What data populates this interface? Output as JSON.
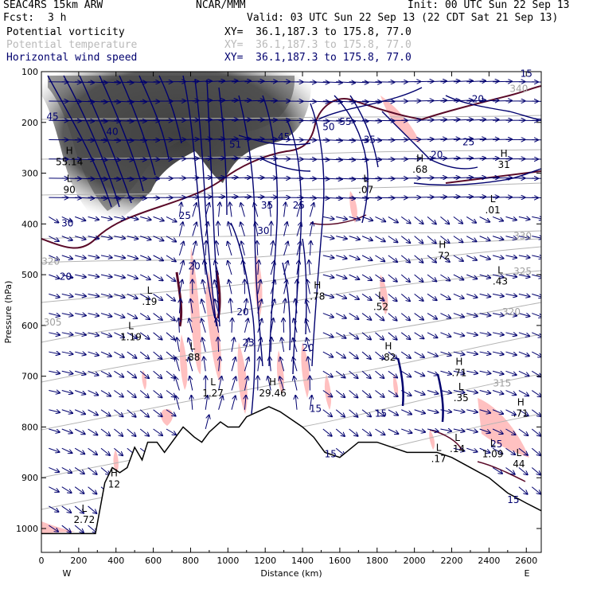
{
  "header": {
    "model": "SEAC4RS 15km ARW",
    "center": "NCAR/MMM",
    "init": "Init: 00 UTC Sun 22 Sep 13",
    "fcst_label": "Fcst:",
    "fcst_value": "3 h",
    "valid": "Valid: 03 UTC Sun 22 Sep 13 (22 CDT Sat 21 Sep 13)",
    "fields": [
      {
        "name": "Potential vorticity",
        "xy": "XY=  36.1,187.3 to 175.8, 77.0",
        "color": "#000000"
      },
      {
        "name": "Potential temperature",
        "xy": "XY=  36.1,187.3 to 175.8, 77.0",
        "color": "#b9b9b9"
      },
      {
        "name": "Horizontal wind speed",
        "xy": "XY=  36.1,187.3 to 175.8, 77.0",
        "color": "#00006e"
      }
    ]
  },
  "chart_data": {
    "type": "cross-section",
    "xlabel": "Distance (km)",
    "ylabel": "Pressure (hPa)",
    "xlim": [
      0,
      2680
    ],
    "ylim": [
      1050,
      100
    ],
    "x_ticks": [
      "0",
      "200",
      "400",
      "600",
      "800",
      "1000",
      "1200",
      "1400",
      "1600",
      "1800",
      "2000",
      "2200",
      "2400",
      "2600"
    ],
    "x_tick_values": [
      0,
      200,
      400,
      600,
      800,
      1000,
      1200,
      1400,
      1600,
      1800,
      2000,
      2200,
      2400,
      2600
    ],
    "y_ticks": [
      "100",
      "200",
      "300",
      "400",
      "500",
      "600",
      "700",
      "800",
      "900",
      "1000"
    ],
    "y_tick_values": [
      100,
      200,
      300,
      400,
      500,
      600,
      700,
      800,
      900,
      1000
    ],
    "left_end": "W",
    "right_end": "E",
    "colors": {
      "pv_shade": "#3a3a3a",
      "pv_contour": "#5a0a28",
      "theta": "#b4b4b4",
      "wind": "#00006e",
      "vert_motion": "#ffb6b6"
    },
    "terrain": [
      [
        0,
        1010
      ],
      [
        200,
        1010
      ],
      [
        290,
        1010
      ],
      [
        340,
        910
      ],
      [
        380,
        880
      ],
      [
        420,
        890
      ],
      [
        460,
        880
      ],
      [
        500,
        840
      ],
      [
        540,
        865
      ],
      [
        570,
        830
      ],
      [
        620,
        830
      ],
      [
        660,
        850
      ],
      [
        700,
        830
      ],
      [
        760,
        800
      ],
      [
        820,
        820
      ],
      [
        860,
        830
      ],
      [
        900,
        810
      ],
      [
        960,
        790
      ],
      [
        1000,
        800
      ],
      [
        1060,
        800
      ],
      [
        1100,
        780
      ],
      [
        1160,
        770
      ],
      [
        1220,
        760
      ],
      [
        1280,
        770
      ],
      [
        1340,
        785
      ],
      [
        1400,
        800
      ],
      [
        1460,
        820
      ],
      [
        1520,
        850
      ],
      [
        1600,
        860
      ],
      [
        1700,
        830
      ],
      [
        1800,
        830
      ],
      [
        1880,
        840
      ],
      [
        1960,
        850
      ],
      [
        2040,
        850
      ],
      [
        2120,
        850
      ],
      [
        2200,
        860
      ],
      [
        2300,
        880
      ],
      [
        2400,
        900
      ],
      [
        2500,
        930
      ],
      [
        2600,
        950
      ],
      [
        2680,
        965
      ]
    ],
    "wind_speed_labels": [
      {
        "text": "45",
        "x": 60,
        "p": 195
      },
      {
        "text": "40",
        "x": 380,
        "p": 225
      },
      {
        "text": "50",
        "x": 1540,
        "p": 215
      },
      {
        "text": "55",
        "x": 1630,
        "p": 205
      },
      {
        "text": "51",
        "x": 1040,
        "p": 250
      },
      {
        "text": "45",
        "x": 1300,
        "p": 235
      },
      {
        "text": "35",
        "x": 1210,
        "p": 370
      },
      {
        "text": "25",
        "x": 1380,
        "p": 370
      },
      {
        "text": "25",
        "x": 770,
        "p": 390
      },
      {
        "text": "30",
        "x": 1190,
        "p": 420
      },
      {
        "text": "20",
        "x": 820,
        "p": 490
      },
      {
        "text": "20",
        "x": 1080,
        "p": 580
      },
      {
        "text": "23",
        "x": 1110,
        "p": 640
      },
      {
        "text": "20",
        "x": 1430,
        "p": 650
      },
      {
        "text": "20",
        "x": 2340,
        "p": 160
      },
      {
        "text": "20",
        "x": 2120,
        "p": 270
      },
      {
        "text": "25",
        "x": 2290,
        "p": 245
      },
      {
        "text": "35",
        "x": 1760,
        "p": 240
      },
      {
        "text": "15",
        "x": 2600,
        "p": 110
      },
      {
        "text": "15",
        "x": 1470,
        "p": 770
      },
      {
        "text": "15",
        "x": 1820,
        "p": 780
      },
      {
        "text": "15",
        "x": 1550,
        "p": 860
      },
      {
        "text": "15",
        "x": 2530,
        "p": 950
      },
      {
        "text": "30",
        "x": 140,
        "p": 405
      },
      {
        "text": "20",
        "x": 130,
        "p": 510
      },
      {
        "text": "25",
        "x": 2440,
        "p": 840
      }
    ],
    "theta_labels": [
      {
        "text": "330",
        "x": 2580,
        "p": 430
      },
      {
        "text": "325",
        "x": 2580,
        "p": 500
      },
      {
        "text": "320",
        "x": 2520,
        "p": 580
      },
      {
        "text": "315",
        "x": 2470,
        "p": 720
      },
      {
        "text": "305",
        "x": 60,
        "p": 600
      },
      {
        "text": "320",
        "x": 50,
        "p": 480
      },
      {
        "text": "340",
        "x": 2560,
        "p": 140
      }
    ],
    "extrema": [
      {
        "type": "H",
        "value": "55.14",
        "x": 150,
        "p": 275
      },
      {
        "type": "L",
        "value": "90",
        "x": 150,
        "p": 330
      },
      {
        "type": "L",
        "value": ".19",
        "x": 580,
        "p": 550
      },
      {
        "type": "L",
        "value": "1.19",
        "x": 480,
        "p": 620
      },
      {
        "type": "L",
        "value": ".88",
        "x": 810,
        "p": 660
      },
      {
        "type": "L",
        "value": "1.27",
        "x": 920,
        "p": 730
      },
      {
        "type": "H",
        "value": "29.46",
        "x": 1240,
        "p": 730
      },
      {
        "type": "H",
        "value": ".78",
        "x": 1480,
        "p": 540
      },
      {
        "type": "L",
        "value": ".52",
        "x": 1820,
        "p": 560
      },
      {
        "type": "H",
        "value": ".82",
        "x": 1860,
        "p": 660
      },
      {
        "type": "H",
        "value": ".72",
        "x": 2150,
        "p": 460
      },
      {
        "type": "L",
        "value": ".43",
        "x": 2460,
        "p": 510
      },
      {
        "type": "H",
        "value": ".71",
        "x": 2240,
        "p": 690
      },
      {
        "type": "L",
        "value": ".35",
        "x": 2250,
        "p": 740
      },
      {
        "type": "L",
        "value": ".07",
        "x": 1740,
        "p": 330
      },
      {
        "type": "H",
        "value": ".68",
        "x": 2030,
        "p": 290
      },
      {
        "type": "L",
        "value": ".01",
        "x": 2420,
        "p": 370
      },
      {
        "type": "H",
        "value": "31",
        "x": 2480,
        "p": 280
      },
      {
        "type": "L",
        "value": ".14",
        "x": 2230,
        "p": 840
      },
      {
        "type": "L",
        "value": "1.09",
        "x": 2420,
        "p": 850
      },
      {
        "type": "H",
        "value": ".71",
        "x": 2570,
        "p": 770
      },
      {
        "type": "L",
        "value": "44",
        "x": 2560,
        "p": 870
      },
      {
        "type": "H",
        "value": "12",
        "x": 390,
        "p": 910
      },
      {
        "type": "L",
        "value": "2.72",
        "x": 230,
        "p": 980
      },
      {
        "type": "L",
        "value": ".17",
        "x": 2130,
        "p": 860
      }
    ]
  }
}
